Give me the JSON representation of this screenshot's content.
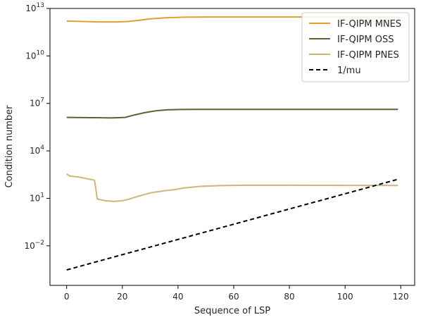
{
  "chart_data": {
    "type": "line",
    "title": "",
    "xlabel": "Sequence of LSP",
    "ylabel": "Condition number",
    "xlim": [
      -6,
      125
    ],
    "ylim_log10": [
      -4.5,
      13
    ],
    "yscale": "log",
    "x_ticks": [
      0,
      20,
      40,
      60,
      80,
      100,
      120
    ],
    "y_ticks": [
      {
        "exp": -2,
        "base": "10",
        "sup": "−2"
      },
      {
        "exp": 1,
        "base": "10",
        "sup": "1"
      },
      {
        "exp": 4,
        "base": "10",
        "sup": "4"
      },
      {
        "exp": 7,
        "base": "10",
        "sup": "7"
      },
      {
        "exp": 10,
        "base": "10",
        "sup": "10"
      },
      {
        "exp": 13,
        "base": "10",
        "sup": "13"
      }
    ],
    "grid": false,
    "legend_position": "top-right",
    "series": [
      {
        "name": "IF-QIPM MNES",
        "color": "#e0a030",
        "dash": "solid",
        "points": [
          [
            0,
            1600000000000.0
          ],
          [
            6,
            1500000000000.0
          ],
          [
            12,
            1400000000000.0
          ],
          [
            18,
            1400000000000.0
          ],
          [
            22,
            1500000000000.0
          ],
          [
            26,
            1800000000000.0
          ],
          [
            30,
            2200000000000.0
          ],
          [
            36,
            2600000000000.0
          ],
          [
            42,
            2800000000000.0
          ],
          [
            50,
            2900000000000.0
          ],
          [
            70,
            2900000000000.0
          ],
          [
            90,
            2900000000000.0
          ],
          [
            110,
            2900000000000.0
          ],
          [
            119,
            2900000000000.0
          ]
        ]
      },
      {
        "name": "IF-QIPM OSS",
        "color": "#55692f",
        "dash": "solid",
        "points": [
          [
            0,
            1300000.0
          ],
          [
            10,
            1250000.0
          ],
          [
            16,
            1200000.0
          ],
          [
            21,
            1300000.0
          ],
          [
            24,
            1800000.0
          ],
          [
            28,
            2600000.0
          ],
          [
            32,
            3400000.0
          ],
          [
            36,
            3900000.0
          ],
          [
            40,
            4100000.0
          ],
          [
            46,
            4200000.0
          ],
          [
            60,
            4200000.0
          ],
          [
            80,
            4200000.0
          ],
          [
            100,
            4200000.0
          ],
          [
            119,
            4200000.0
          ]
        ]
      },
      {
        "name": "IF-QIPM PNES",
        "color": "#c9b77e",
        "dash": "solid",
        "points": [
          [
            0,
            350
          ],
          [
            1,
            260
          ],
          [
            5,
            210
          ],
          [
            10,
            140
          ],
          [
            11,
            9
          ],
          [
            14,
            7
          ],
          [
            17,
            6.5
          ],
          [
            20,
            7
          ],
          [
            22,
            8.5
          ],
          [
            26,
            14
          ],
          [
            30,
            22
          ],
          [
            35,
            30
          ],
          [
            38,
            34
          ],
          [
            42,
            45
          ],
          [
            48,
            57
          ],
          [
            55,
            64
          ],
          [
            65,
            67
          ],
          [
            80,
            67
          ],
          [
            100,
            66
          ],
          [
            119,
            65
          ]
        ]
      },
      {
        "name": "1/mu",
        "color": "#000000",
        "dash": "dashed",
        "points": [
          [
            0,
            0.0003
          ],
          [
            119,
            160
          ]
        ]
      }
    ]
  }
}
